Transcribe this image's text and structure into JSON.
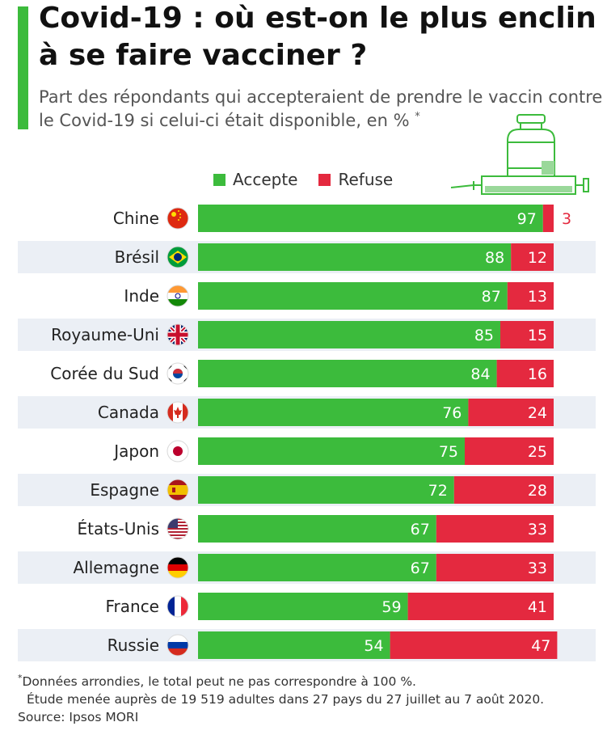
{
  "header": {
    "title": "Covid-19 : où est-on le plus enclin à se faire vacciner ?",
    "subtitle": "Part des répondants qui accepteraient de prendre le vaccin contre le Covid-19 si celui-ci était disponible, en %",
    "asterisk": "*"
  },
  "legend": {
    "accept": "Accepte",
    "refuse": "Refuse"
  },
  "colors": {
    "accept": "#3cbb3c",
    "refuse": "#e4293f",
    "stripe": "#ebeff5",
    "accent": "#3cbb3c"
  },
  "chart_data": {
    "type": "bar",
    "orientation": "horizontal",
    "stacked": true,
    "categories": [
      "Chine",
      "Brésil",
      "Inde",
      "Royaume-Uni",
      "Corée du Sud",
      "Canada",
      "Japon",
      "Espagne",
      "États-Unis",
      "Allemagne",
      "France",
      "Russie"
    ],
    "series": [
      {
        "name": "Accepte",
        "values": [
          97,
          88,
          87,
          85,
          84,
          76,
          75,
          72,
          67,
          67,
          59,
          54
        ]
      },
      {
        "name": "Refuse",
        "values": [
          3,
          12,
          13,
          15,
          16,
          24,
          25,
          28,
          33,
          33,
          41,
          47
        ]
      }
    ],
    "xlim": [
      0,
      100
    ],
    "legend_position": "top",
    "grid": false,
    "flags": [
      "china-flag-icon",
      "brazil-flag-icon",
      "india-flag-icon",
      "uk-flag-icon",
      "south-korea-flag-icon",
      "canada-flag-icon",
      "japan-flag-icon",
      "spain-flag-icon",
      "usa-flag-icon",
      "germany-flag-icon",
      "france-flag-icon",
      "russia-flag-icon"
    ]
  },
  "footer": {
    "note_asterisk": "*",
    "note": "Données arrondies, le total peut ne pas correspondre à 100 %.",
    "study": "Étude menée auprès de 19 519 adultes dans 27 pays du 27 juillet au 7 août 2020.",
    "source": "Source: Ipsos MORI"
  }
}
